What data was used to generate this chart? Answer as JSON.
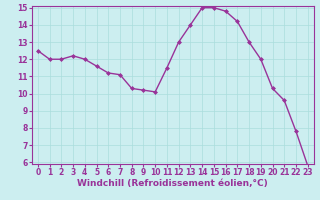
{
  "x": [
    0,
    1,
    2,
    3,
    4,
    5,
    6,
    7,
    8,
    9,
    10,
    11,
    12,
    13,
    14,
    15,
    16,
    17,
    18,
    19,
    20,
    21,
    22,
    23
  ],
  "y": [
    12.5,
    12.0,
    12.0,
    12.2,
    12.0,
    11.6,
    11.2,
    11.1,
    10.3,
    10.2,
    10.1,
    11.5,
    13.0,
    14.0,
    15.0,
    15.0,
    14.8,
    14.2,
    13.0,
    12.0,
    10.3,
    9.6,
    7.8,
    5.8
  ],
  "line_color": "#993399",
  "marker": "D",
  "marker_size": 2,
  "bg_color": "#cceef0",
  "grid_color": "#aadddd",
  "xlabel": "Windchill (Refroidissement éolien,°C)",
  "ylim": [
    6,
    15
  ],
  "xlim": [
    -0.5,
    23.5
  ],
  "yticks": [
    6,
    7,
    8,
    9,
    10,
    11,
    12,
    13,
    14,
    15
  ],
  "xticks": [
    0,
    1,
    2,
    3,
    4,
    5,
    6,
    7,
    8,
    9,
    10,
    11,
    12,
    13,
    14,
    15,
    16,
    17,
    18,
    19,
    20,
    21,
    22,
    23
  ],
  "tick_label_size": 5.5,
  "xlabel_size": 6.5,
  "axis_color": "#993399",
  "spine_color": "#993399",
  "linewidth": 1.0
}
